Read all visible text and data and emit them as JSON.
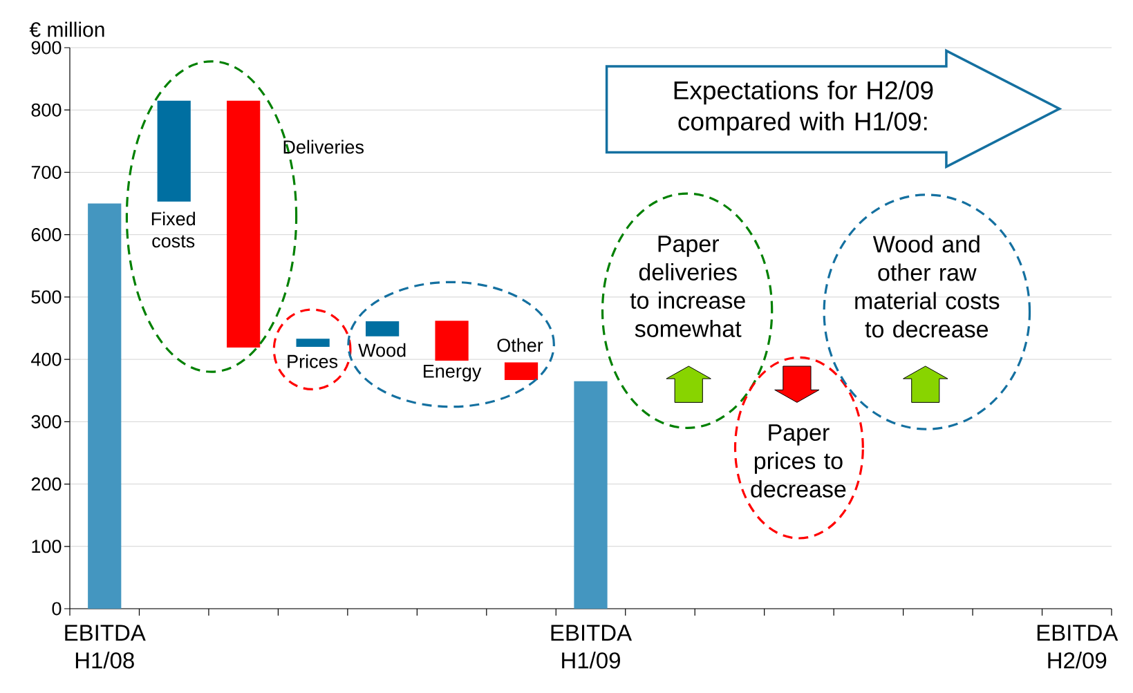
{
  "chart_data": {
    "type": "bar",
    "ylabel": "€ million",
    "categories": [
      "EBITDA H1/08",
      null,
      null,
      null,
      null,
      null,
      null,
      "EBITDA H1/09",
      null,
      null,
      null,
      null,
      null,
      null,
      "EBITDA H2/09"
    ],
    "values": [
      650,
      162,
      -396,
      13,
      24,
      -64,
      -28,
      365,
      null,
      null,
      null,
      null,
      null,
      null,
      null
    ],
    "base": [
      0,
      653,
      815,
      420,
      437,
      462,
      395,
      0,
      null,
      null,
      null,
      null,
      null,
      null,
      null
    ],
    "colors": [
      "#4496c0",
      "#006fa1",
      "#ff0000",
      "#006fa1",
      "#006fa1",
      "#ff0000",
      "#ff0000",
      "#4496c0",
      null,
      null,
      null,
      null,
      null,
      null,
      null
    ],
    "ylim": [
      0,
      900
    ],
    "yticks": [
      0,
      100,
      200,
      300,
      400,
      500,
      600,
      700,
      800,
      900
    ],
    "grid": "y",
    "annotations": [
      "Fixed costs",
      "Deliveries",
      "Prices",
      "Wood",
      "Energy",
      "Other",
      "Expectations for H2/09 compared with H1/09:",
      "Paper deliveries to increase somewhat",
      "Paper prices to decrease",
      "Wood and other raw material costs to decrease"
    ]
  }
}
